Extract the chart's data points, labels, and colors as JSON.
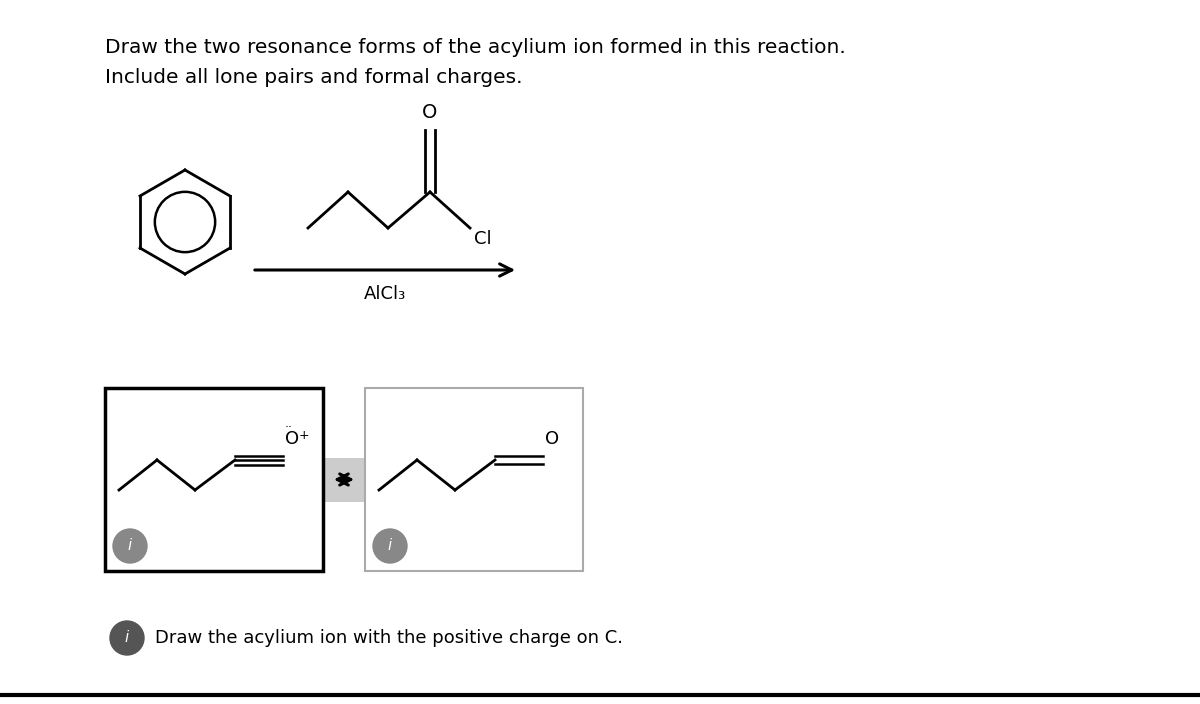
{
  "bg_color": "#ffffff",
  "title_line1": "Draw the two resonance forms of the acylium ion formed in this reaction.",
  "title_line2": "Include all lone pairs and formal charges.",
  "alcl3_label": "AlCl₃",
  "info_text": "Draw the acylium ion with the positive charge on C.",
  "text_color": "#000000",
  "font_size_title": 14.5,
  "font_size_chem": 13,
  "font_size_info": 13
}
